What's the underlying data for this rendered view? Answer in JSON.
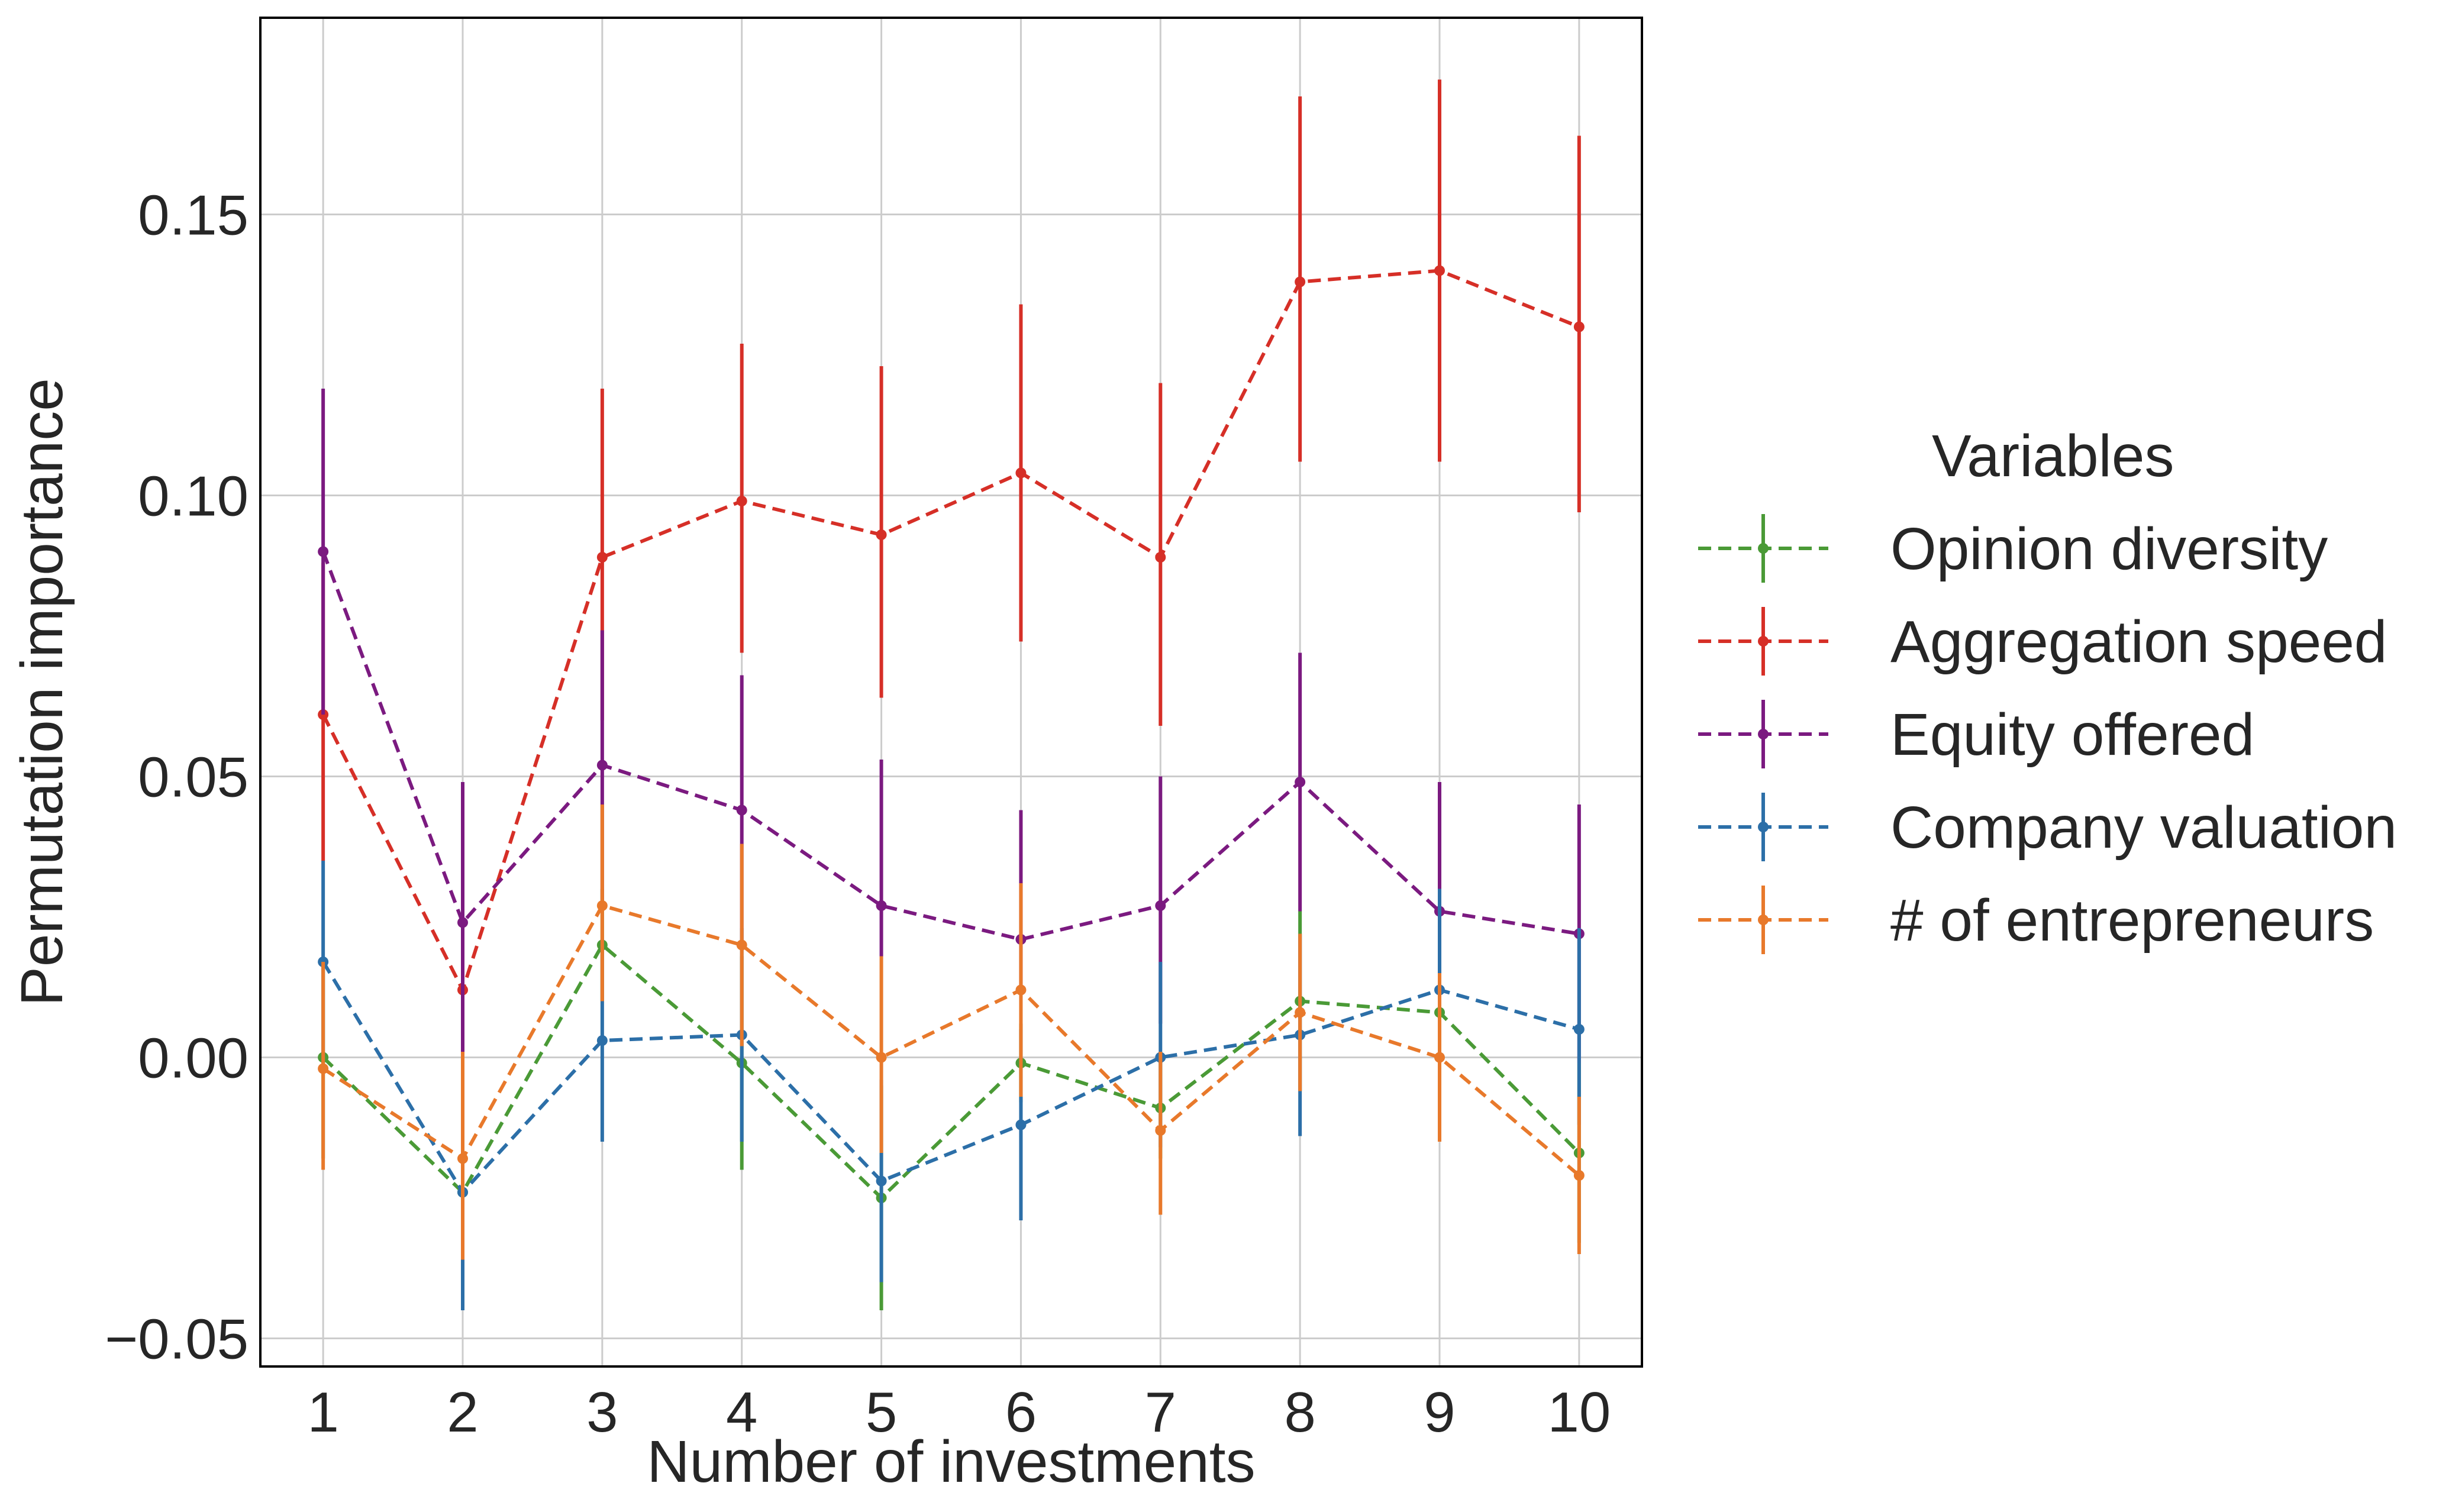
{
  "chart_data": {
    "type": "line",
    "xlabel": "Number of investments",
    "ylabel": "Permutation importance",
    "x": [
      1,
      2,
      3,
      4,
      5,
      6,
      7,
      8,
      9,
      10
    ],
    "x_ticks": [
      "1",
      "2",
      "3",
      "4",
      "5",
      "6",
      "7",
      "8",
      "9",
      "10"
    ],
    "xlim": [
      0.55,
      10.45
    ],
    "ylim": [
      -0.055,
      0.185
    ],
    "y_ticks": [
      -0.05,
      0.0,
      0.05,
      0.1,
      0.15
    ],
    "y_tick_labels": [
      "−0.05",
      "0.00",
      "0.05",
      "0.10",
      "0.15"
    ],
    "grid": true,
    "line_style": "dashed",
    "error_bars": true,
    "legend": {
      "title": "Variables",
      "placement": "outside-right"
    },
    "series": [
      {
        "name": "Opinion diversity",
        "color": "#4a9a36",
        "values": [
          0.0,
          -0.024,
          0.02,
          -0.001,
          -0.025,
          -0.001,
          -0.009,
          0.01,
          0.008,
          -0.017
        ],
        "err_low": [
          -0.018,
          -0.04,
          0.01,
          -0.02,
          -0.045,
          -0.008,
          -0.018,
          -0.006,
          -0.008,
          -0.033
        ],
        "err_high": [
          0.017,
          -0.008,
          0.03,
          0.018,
          -0.005,
          0.006,
          0.0,
          0.026,
          0.025,
          -0.001
        ]
      },
      {
        "name": "Aggregation speed",
        "color": "#d62f27",
        "values": [
          0.061,
          0.012,
          0.089,
          0.099,
          0.093,
          0.104,
          0.089,
          0.138,
          0.14,
          0.13
        ],
        "err_low": [
          0.035,
          0.0,
          0.06,
          0.072,
          0.064,
          0.074,
          0.059,
          0.106,
          0.106,
          0.097
        ],
        "err_high": [
          0.088,
          0.024,
          0.119,
          0.127,
          0.123,
          0.134,
          0.12,
          0.171,
          0.174,
          0.164
        ]
      },
      {
        "name": "Equity offered",
        "color": "#7b1a80",
        "values": [
          0.09,
          0.024,
          0.052,
          0.044,
          0.027,
          0.021,
          0.027,
          0.049,
          0.026,
          0.022
        ],
        "err_low": [
          0.061,
          0.001,
          0.028,
          0.02,
          0.018,
          0.012,
          0.006,
          0.026,
          0.004,
          -0.001
        ],
        "err_high": [
          0.119,
          0.049,
          0.076,
          0.068,
          0.053,
          0.044,
          0.05,
          0.072,
          0.049,
          0.045
        ]
      },
      {
        "name": "Company valuation",
        "color": "#2c6fa8",
        "values": [
          0.017,
          -0.024,
          0.003,
          0.004,
          -0.022,
          -0.012,
          0.0,
          0.004,
          0.012,
          0.005
        ],
        "err_low": [
          0.0,
          -0.045,
          -0.015,
          -0.015,
          -0.04,
          -0.029,
          -0.016,
          -0.014,
          -0.005,
          -0.012
        ],
        "err_high": [
          0.035,
          -0.004,
          0.021,
          0.023,
          -0.004,
          0.005,
          0.017,
          0.022,
          0.03,
          0.023
        ]
      },
      {
        "name": "# of entrepreneurs",
        "color": "#e8792b",
        "values": [
          -0.002,
          -0.018,
          0.027,
          0.02,
          0.0,
          0.012,
          -0.013,
          0.008,
          0.0,
          -0.021
        ],
        "err_low": [
          -0.02,
          -0.036,
          0.01,
          0.002,
          -0.017,
          -0.007,
          -0.028,
          -0.006,
          -0.015,
          -0.035
        ],
        "err_high": [
          0.017,
          0.001,
          0.045,
          0.038,
          0.018,
          0.031,
          0.001,
          0.022,
          0.015,
          -0.007
        ]
      }
    ]
  }
}
